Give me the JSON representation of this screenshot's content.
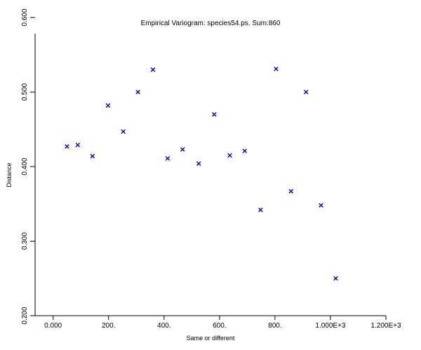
{
  "chart_data": {
    "type": "scatter",
    "title": "Empirical Variogram: species54.ps. Sum:860",
    "xlabel": "Same or different",
    "ylabel": "Distance",
    "xlim": [
      -65,
      1200
    ],
    "ylim": [
      0.2,
      0.6
    ],
    "x_ticks": [
      0,
      200,
      400,
      600,
      800,
      1000,
      1200
    ],
    "x_tick_labels": [
      "0.000",
      "200.",
      "400.",
      "600.",
      "800.",
      "1.000E+3",
      "1.200E+3"
    ],
    "y_ticks": [
      0.2,
      0.3,
      0.4,
      0.5,
      0.6
    ],
    "y_tick_labels": [
      "0.200",
      "0.300",
      "0.400",
      "0.500",
      "0.600"
    ],
    "marker": "x",
    "marker_color": "#0000cc",
    "grid": false,
    "points": [
      {
        "x": 50,
        "y": 0.427
      },
      {
        "x": 89,
        "y": 0.429
      },
      {
        "x": 142,
        "y": 0.414
      },
      {
        "x": 198,
        "y": 0.482
      },
      {
        "x": 253,
        "y": 0.447
      },
      {
        "x": 306,
        "y": 0.5
      },
      {
        "x": 360,
        "y": 0.53
      },
      {
        "x": 413,
        "y": 0.411
      },
      {
        "x": 467,
        "y": 0.423
      },
      {
        "x": 525,
        "y": 0.404
      },
      {
        "x": 581,
        "y": 0.47
      },
      {
        "x": 637,
        "y": 0.415
      },
      {
        "x": 691,
        "y": 0.421
      },
      {
        "x": 748,
        "y": 0.342
      },
      {
        "x": 804,
        "y": 0.531
      },
      {
        "x": 858,
        "y": 0.367
      },
      {
        "x": 912,
        "y": 0.5
      },
      {
        "x": 966,
        "y": 0.348
      },
      {
        "x": 1019,
        "y": 0.25
      }
    ]
  }
}
